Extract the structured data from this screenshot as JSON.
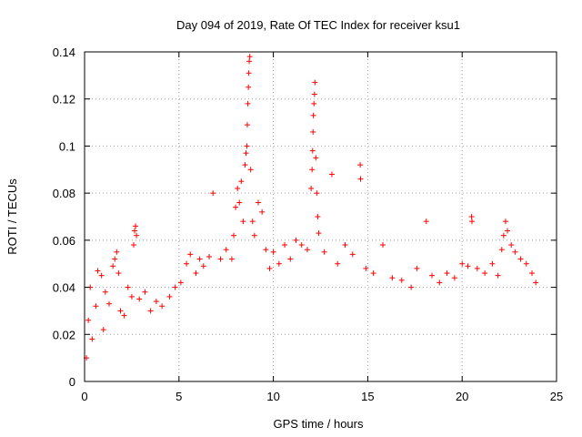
{
  "chart_data": {
    "type": "scatter",
    "title": "Day 094 of 2019, Rate Of TEC Index for receiver ksu1",
    "xlabel": "GPS time / hours",
    "ylabel": "ROTI / TECUs",
    "xlim": [
      0,
      25
    ],
    "ylim": [
      0,
      0.14
    ],
    "x_ticks": [
      0,
      5,
      10,
      15,
      20,
      25
    ],
    "x_tick_labels": [
      "0",
      "5",
      "10",
      "15",
      "20",
      "25"
    ],
    "y_ticks": [
      0,
      0.02,
      0.04,
      0.06,
      0.08,
      0.1,
      0.12,
      0.14
    ],
    "y_tick_labels": [
      "0",
      "0.02",
      "0.04",
      "0.06",
      "0.08",
      "0.1",
      "0.12",
      "0.14"
    ],
    "grid": true,
    "marker": "plus",
    "color": "#ff0000",
    "series": [
      {
        "name": "ROTI",
        "points": [
          [
            0.1,
            0.01
          ],
          [
            0.2,
            0.026
          ],
          [
            0.3,
            0.04
          ],
          [
            0.4,
            0.018
          ],
          [
            0.6,
            0.032
          ],
          [
            0.7,
            0.047
          ],
          [
            0.9,
            0.045
          ],
          [
            1.0,
            0.022
          ],
          [
            1.1,
            0.038
          ],
          [
            1.3,
            0.033
          ],
          [
            1.5,
            0.049
          ],
          [
            1.6,
            0.052
          ],
          [
            1.7,
            0.055
          ],
          [
            1.8,
            0.046
          ],
          [
            1.9,
            0.03
          ],
          [
            2.1,
            0.028
          ],
          [
            2.3,
            0.04
          ],
          [
            2.5,
            0.036
          ],
          [
            2.6,
            0.058
          ],
          [
            2.65,
            0.064
          ],
          [
            2.7,
            0.066
          ],
          [
            2.75,
            0.062
          ],
          [
            2.9,
            0.035
          ],
          [
            3.2,
            0.038
          ],
          [
            3.5,
            0.03
          ],
          [
            3.8,
            0.034
          ],
          [
            4.1,
            0.032
          ],
          [
            4.5,
            0.036
          ],
          [
            4.8,
            0.04
          ],
          [
            5.1,
            0.042
          ],
          [
            5.4,
            0.05
          ],
          [
            5.6,
            0.054
          ],
          [
            5.9,
            0.046
          ],
          [
            6.1,
            0.052
          ],
          [
            6.3,
            0.049
          ],
          [
            6.6,
            0.053
          ],
          [
            6.8,
            0.08
          ],
          [
            7.2,
            0.052
          ],
          [
            7.5,
            0.056
          ],
          [
            7.8,
            0.052
          ],
          [
            7.9,
            0.062
          ],
          [
            8.0,
            0.074
          ],
          [
            8.1,
            0.082
          ],
          [
            8.2,
            0.076
          ],
          [
            8.3,
            0.085
          ],
          [
            8.4,
            0.068
          ],
          [
            8.5,
            0.092
          ],
          [
            8.55,
            0.097
          ],
          [
            8.6,
            0.1
          ],
          [
            8.62,
            0.109
          ],
          [
            8.65,
            0.118
          ],
          [
            8.68,
            0.125
          ],
          [
            8.7,
            0.131
          ],
          [
            8.72,
            0.136
          ],
          [
            8.75,
            0.138
          ],
          [
            8.8,
            0.09
          ],
          [
            8.9,
            0.068
          ],
          [
            9.0,
            0.062
          ],
          [
            9.2,
            0.076
          ],
          [
            9.4,
            0.072
          ],
          [
            9.6,
            0.056
          ],
          [
            9.8,
            0.048
          ],
          [
            10.0,
            0.055
          ],
          [
            10.3,
            0.05
          ],
          [
            10.6,
            0.058
          ],
          [
            10.9,
            0.052
          ],
          [
            11.2,
            0.06
          ],
          [
            11.5,
            0.058
          ],
          [
            11.8,
            0.056
          ],
          [
            12.0,
            0.082
          ],
          [
            12.05,
            0.09
          ],
          [
            12.08,
            0.098
          ],
          [
            12.1,
            0.106
          ],
          [
            12.12,
            0.113
          ],
          [
            12.15,
            0.118
          ],
          [
            12.18,
            0.122
          ],
          [
            12.2,
            0.127
          ],
          [
            12.25,
            0.095
          ],
          [
            12.3,
            0.08
          ],
          [
            12.35,
            0.07
          ],
          [
            12.4,
            0.063
          ],
          [
            12.7,
            0.055
          ],
          [
            13.1,
            0.088
          ],
          [
            13.4,
            0.05
          ],
          [
            13.8,
            0.058
          ],
          [
            14.2,
            0.054
          ],
          [
            14.6,
            0.092
          ],
          [
            14.62,
            0.086
          ],
          [
            14.9,
            0.048
          ],
          [
            15.3,
            0.046
          ],
          [
            15.8,
            0.058
          ],
          [
            16.3,
            0.044
          ],
          [
            16.8,
            0.043
          ],
          [
            17.3,
            0.04
          ],
          [
            17.6,
            0.048
          ],
          [
            18.1,
            0.068
          ],
          [
            18.4,
            0.045
          ],
          [
            18.8,
            0.042
          ],
          [
            19.2,
            0.046
          ],
          [
            19.6,
            0.044
          ],
          [
            20.0,
            0.05
          ],
          [
            20.3,
            0.049
          ],
          [
            20.5,
            0.07
          ],
          [
            20.52,
            0.068
          ],
          [
            20.8,
            0.048
          ],
          [
            21.2,
            0.046
          ],
          [
            21.6,
            0.05
          ],
          [
            21.9,
            0.045
          ],
          [
            22.1,
            0.056
          ],
          [
            22.2,
            0.062
          ],
          [
            22.3,
            0.068
          ],
          [
            22.4,
            0.064
          ],
          [
            22.6,
            0.058
          ],
          [
            22.8,
            0.055
          ],
          [
            23.1,
            0.052
          ],
          [
            23.4,
            0.05
          ],
          [
            23.7,
            0.046
          ],
          [
            23.9,
            0.042
          ]
        ]
      }
    ]
  }
}
